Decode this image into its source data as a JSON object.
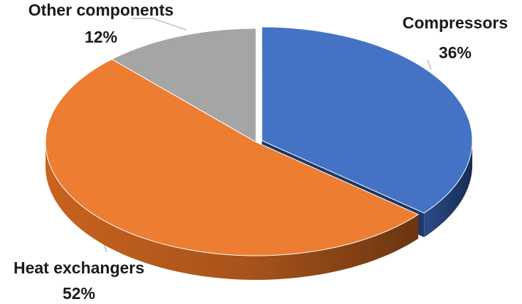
{
  "chart_data": {
    "type": "pie",
    "title": "",
    "style": "3d-exploded",
    "slices": [
      {
        "label": "Compressors",
        "pct_text": "36%",
        "value": 36,
        "color": "#4472C4",
        "side_color": "#1F3864",
        "explode": true
      },
      {
        "label": "Heat exchangers",
        "pct_text": "52%",
        "value": 52,
        "color": "#ED7D31",
        "side_color": "#8A4415",
        "explode": false
      },
      {
        "label": "Other components",
        "pct_text": "12%",
        "value": 12,
        "color": "#A5A5A5",
        "side_color": "#555555",
        "explode": false
      }
    ]
  }
}
